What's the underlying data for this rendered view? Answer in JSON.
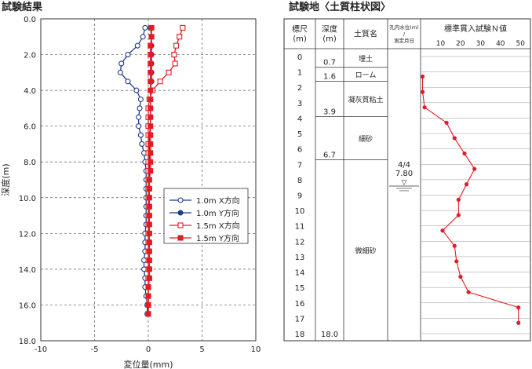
{
  "chart_data": [
    {
      "type": "line",
      "title": "試験結果",
      "xlabel": "変位量(mm)",
      "ylabel": "深度(m)",
      "xlim": [
        -10,
        10
      ],
      "ylim": [
        0.0,
        18.0
      ],
      "y_inverted": true,
      "x_ticks": [
        "-10",
        "-5",
        "0",
        "5",
        "10"
      ],
      "y_ticks": [
        "0.0",
        "2.0",
        "4.0",
        "6.0",
        "8.0",
        "10.0",
        "12.0",
        "14.0",
        "16.0",
        "18.0"
      ],
      "grid": true,
      "legend_position": "right",
      "series": [
        {
          "name": "1.0m X方向",
          "color": "#1f3c88",
          "marker": "open-circle",
          "points": [
            [
              -0.3,
              0.5
            ],
            [
              -0.5,
              1.0
            ],
            [
              -1.0,
              1.5
            ],
            [
              -1.9,
              2.0
            ],
            [
              -2.5,
              2.5
            ],
            [
              -2.6,
              3.0
            ],
            [
              -1.9,
              3.5
            ],
            [
              -1.1,
              4.0
            ],
            [
              -0.7,
              4.5
            ],
            [
              -0.8,
              5.0
            ],
            [
              -0.9,
              5.5
            ],
            [
              -0.9,
              6.0
            ],
            [
              -0.7,
              6.5
            ],
            [
              -0.6,
              7.0
            ],
            [
              -0.4,
              7.5
            ],
            [
              -0.3,
              8.0
            ],
            [
              -0.2,
              8.5
            ],
            [
              -0.2,
              9.0
            ],
            [
              -0.2,
              9.5
            ],
            [
              -0.2,
              10.0
            ],
            [
              -0.2,
              10.5
            ],
            [
              -0.2,
              11.0
            ],
            [
              -0.2,
              11.5
            ],
            [
              -0.3,
              12.0
            ],
            [
              -0.3,
              12.5
            ],
            [
              -0.3,
              13.0
            ],
            [
              -0.4,
              13.5
            ],
            [
              -0.4,
              14.0
            ],
            [
              -0.3,
              14.5
            ],
            [
              -0.3,
              15.0
            ],
            [
              -0.2,
              15.5
            ],
            [
              -0.1,
              16.0
            ],
            [
              -0.1,
              16.5
            ]
          ]
        },
        {
          "name": "1.0m Y方向",
          "color": "#1f3c88",
          "marker": "filled-circle",
          "points": [
            [
              0.2,
              0.5
            ],
            [
              0.3,
              1.0
            ],
            [
              0.3,
              1.5
            ],
            [
              0.3,
              2.0
            ],
            [
              0.3,
              2.5
            ],
            [
              0.3,
              3.0
            ],
            [
              0.3,
              3.5
            ],
            [
              0.2,
              4.0
            ],
            [
              0.2,
              4.5
            ],
            [
              0.2,
              5.0
            ],
            [
              0.2,
              5.5
            ],
            [
              0.2,
              6.0
            ],
            [
              0.1,
              6.5
            ],
            [
              0.1,
              7.0
            ],
            [
              0.1,
              7.5
            ],
            [
              0.1,
              8.0
            ],
            [
              0.1,
              8.5
            ],
            [
              0.1,
              9.0
            ],
            [
              0.1,
              9.5
            ],
            [
              0.1,
              10.0
            ],
            [
              0.1,
              10.5
            ],
            [
              0.1,
              11.0
            ],
            [
              0.1,
              11.5
            ],
            [
              0.1,
              12.0
            ],
            [
              0.1,
              12.5
            ],
            [
              0.1,
              13.0
            ],
            [
              0.1,
              13.5
            ],
            [
              0.1,
              14.0
            ],
            [
              0.1,
              14.5
            ],
            [
              0.0,
              15.0
            ],
            [
              0.0,
              15.5
            ],
            [
              0.0,
              16.0
            ],
            [
              0.0,
              16.5
            ]
          ]
        },
        {
          "name": "1.5m X方向",
          "color": "#e31b23",
          "marker": "open-square",
          "points": [
            [
              3.2,
              0.5
            ],
            [
              2.9,
              1.0
            ],
            [
              2.6,
              1.5
            ],
            [
              2.4,
              2.0
            ],
            [
              2.5,
              2.5
            ],
            [
              1.9,
              3.0
            ],
            [
              1.1,
              3.5
            ],
            [
              0.4,
              4.0
            ],
            [
              0.1,
              4.5
            ],
            [
              0.0,
              5.0
            ],
            [
              0.0,
              5.5
            ],
            [
              0.0,
              6.0
            ],
            [
              0.0,
              6.5
            ],
            [
              0.0,
              7.0
            ],
            [
              0.0,
              7.5
            ],
            [
              0.0,
              8.0
            ],
            [
              0.0,
              8.5
            ],
            [
              0.0,
              9.0
            ],
            [
              0.0,
              9.5
            ],
            [
              0.0,
              10.0
            ],
            [
              0.0,
              10.5
            ],
            [
              0.0,
              11.0
            ],
            [
              0.0,
              11.5
            ],
            [
              0.0,
              12.0
            ],
            [
              0.0,
              12.5
            ],
            [
              0.0,
              13.0
            ],
            [
              0.0,
              13.5
            ],
            [
              0.0,
              14.0
            ],
            [
              0.0,
              14.5
            ],
            [
              0.0,
              15.0
            ],
            [
              0.0,
              15.5
            ],
            [
              0.0,
              16.0
            ],
            [
              0.0,
              16.5
            ]
          ]
        },
        {
          "name": "1.5m Y方向",
          "color": "#e31b23",
          "marker": "filled-square",
          "points": [
            [
              0.3,
              0.5
            ],
            [
              0.3,
              1.0
            ],
            [
              0.2,
              1.5
            ],
            [
              0.2,
              2.0
            ],
            [
              0.2,
              2.5
            ],
            [
              0.2,
              3.0
            ],
            [
              0.2,
              3.5
            ],
            [
              0.2,
              4.0
            ],
            [
              0.2,
              4.5
            ],
            [
              0.2,
              5.0
            ],
            [
              0.2,
              5.5
            ],
            [
              0.2,
              6.0
            ],
            [
              0.2,
              6.5
            ],
            [
              0.2,
              7.0
            ],
            [
              0.2,
              7.5
            ],
            [
              0.2,
              8.0
            ],
            [
              0.2,
              8.5
            ],
            [
              0.1,
              9.0
            ],
            [
              0.1,
              9.5
            ],
            [
              0.1,
              10.0
            ],
            [
              0.1,
              10.5
            ],
            [
              0.1,
              11.0
            ],
            [
              0.1,
              11.5
            ],
            [
              0.1,
              12.0
            ],
            [
              0.1,
              12.5
            ],
            [
              0.1,
              13.0
            ],
            [
              0.1,
              13.5
            ],
            [
              0.1,
              14.0
            ],
            [
              0.1,
              14.5
            ],
            [
              0.0,
              15.0
            ],
            [
              0.0,
              15.5
            ],
            [
              0.0,
              16.0
            ],
            [
              0.0,
              16.5
            ]
          ]
        }
      ]
    },
    {
      "type": "table",
      "title": "試験地〈土質柱状図〉",
      "columns": [
        "標尺\n(m)",
        "深度\n(m)",
        "土質名",
        "孔内水位(m)\n/\n測定月日",
        "標準貫入試験Ｎ値"
      ],
      "scale_labels": [
        "0",
        "1",
        "2",
        "3",
        "4",
        "5",
        "6",
        "7",
        "8",
        "9",
        "10",
        "11",
        "12",
        "13",
        "14",
        "15",
        "16",
        "17",
        "18"
      ],
      "layers": [
        {
          "name": "埋土",
          "bottom": "0.7",
          "bottom_value": 0.7
        },
        {
          "name": "ローム",
          "bottom": "1.6",
          "bottom_value": 1.6
        },
        {
          "name": "凝灰質粘土",
          "bottom": "3.9",
          "bottom_value": 3.9
        },
        {
          "name": "細砂",
          "bottom": "6.7",
          "bottom_value": 6.7
        },
        {
          "name": "微細砂",
          "bottom": "18.0",
          "bottom_value": 18.0
        }
      ],
      "water_level": {
        "date": "4/4",
        "depth": "7.80",
        "symbol": "▽",
        "depth_value": 7.8
      },
      "n_value_chart": {
        "type": "line",
        "color": "#e31b23",
        "x_ticks": [
          "10",
          "20",
          "30",
          "40",
          "50"
        ],
        "xlim": [
          0,
          55
        ],
        "points": [
          [
            1,
            1.3
          ],
          [
            1,
            2.3
          ],
          [
            2,
            3.3
          ],
          [
            13,
            4.3
          ],
          [
            17,
            5.3
          ],
          [
            22,
            6.3
          ],
          [
            27,
            7.3
          ],
          [
            23,
            8.3
          ],
          [
            19,
            9.3
          ],
          [
            19,
            10.3
          ],
          [
            11,
            11.3
          ],
          [
            17,
            12.3
          ],
          [
            18,
            13.3
          ],
          [
            20,
            14.3
          ],
          [
            24,
            15.3
          ],
          [
            49,
            16.3
          ],
          [
            49,
            17.3
          ]
        ]
      }
    }
  ]
}
